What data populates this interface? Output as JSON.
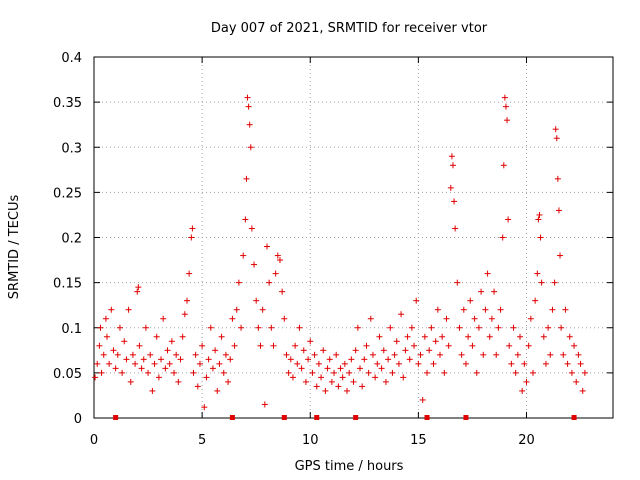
{
  "chart_data": {
    "type": "scatter",
    "title": "Day 007 of 2021, SRMTID for receiver vtor",
    "xlabel": "GPS time / hours",
    "ylabel": "SRMTID / TECUs",
    "xlim": [
      0,
      24
    ],
    "ylim": [
      0,
      0.4
    ],
    "xticks": [
      0,
      5,
      10,
      15,
      20
    ],
    "yticks": [
      0,
      0.05,
      0.1,
      0.15,
      0.2,
      0.25,
      0.3,
      0.35,
      0.4
    ],
    "grid": true,
    "marker": "plus",
    "color": "#e00000",
    "series": [
      {
        "name": "SRMTID",
        "points": [
          [
            0.05,
            0.045
          ],
          [
            0.15,
            0.06
          ],
          [
            0.25,
            0.08
          ],
          [
            0.3,
            0.1
          ],
          [
            0.35,
            0.05
          ],
          [
            0.45,
            0.07
          ],
          [
            0.55,
            0.11
          ],
          [
            0.6,
            0.09
          ],
          [
            0.7,
            0.06
          ],
          [
            0.8,
            0.12
          ],
          [
            0.9,
            0.075
          ],
          [
            1.0,
            0.055
          ],
          [
            1.1,
            0.07
          ],
          [
            1.2,
            0.1
          ],
          [
            1.3,
            0.05
          ],
          [
            1.4,
            0.085
          ],
          [
            1.5,
            0.065
          ],
          [
            1.6,
            0.12
          ],
          [
            1.7,
            0.04
          ],
          [
            1.8,
            0.07
          ],
          [
            1.9,
            0.06
          ],
          [
            2.0,
            0.14
          ],
          [
            2.05,
            0.145
          ],
          [
            2.1,
            0.08
          ],
          [
            2.2,
            0.055
          ],
          [
            2.3,
            0.065
          ],
          [
            2.4,
            0.1
          ],
          [
            2.5,
            0.05
          ],
          [
            2.6,
            0.07
          ],
          [
            2.7,
            0.03
          ],
          [
            2.8,
            0.06
          ],
          [
            2.9,
            0.09
          ],
          [
            3.0,
            0.045
          ],
          [
            3.1,
            0.065
          ],
          [
            3.2,
            0.11
          ],
          [
            3.3,
            0.055
          ],
          [
            3.4,
            0.075
          ],
          [
            3.5,
            0.06
          ],
          [
            3.6,
            0.085
          ],
          [
            3.7,
            0.05
          ],
          [
            3.8,
            0.07
          ],
          [
            3.9,
            0.04
          ],
          [
            4.0,
            0.065
          ],
          [
            4.1,
            0.09
          ],
          [
            4.2,
            0.115
          ],
          [
            4.3,
            0.13
          ],
          [
            4.4,
            0.16
          ],
          [
            4.5,
            0.2
          ],
          [
            4.55,
            0.21
          ],
          [
            4.6,
            0.05
          ],
          [
            4.7,
            0.07
          ],
          [
            4.8,
            0.035
          ],
          [
            4.9,
            0.06
          ],
          [
            5.0,
            0.08
          ],
          [
            5.1,
            0.012
          ],
          [
            5.2,
            0.045
          ],
          [
            5.3,
            0.065
          ],
          [
            5.4,
            0.1
          ],
          [
            5.5,
            0.055
          ],
          [
            5.6,
            0.075
          ],
          [
            5.7,
            0.03
          ],
          [
            5.8,
            0.06
          ],
          [
            5.9,
            0.09
          ],
          [
            6.0,
            0.05
          ],
          [
            6.1,
            0.07
          ],
          [
            6.2,
            0.04
          ],
          [
            6.3,
            0.065
          ],
          [
            6.4,
            0.11
          ],
          [
            6.5,
            0.08
          ],
          [
            6.6,
            0.12
          ],
          [
            6.7,
            0.15
          ],
          [
            6.8,
            0.1
          ],
          [
            6.9,
            0.18
          ],
          [
            7.0,
            0.22
          ],
          [
            7.05,
            0.265
          ],
          [
            7.1,
            0.355
          ],
          [
            7.15,
            0.345
          ],
          [
            7.2,
            0.325
          ],
          [
            7.25,
            0.3
          ],
          [
            7.3,
            0.21
          ],
          [
            7.4,
            0.17
          ],
          [
            7.5,
            0.13
          ],
          [
            7.6,
            0.1
          ],
          [
            7.7,
            0.08
          ],
          [
            7.8,
            0.12
          ],
          [
            7.9,
            0.015
          ],
          [
            8.0,
            0.19
          ],
          [
            8.1,
            0.15
          ],
          [
            8.2,
            0.1
          ],
          [
            8.3,
            0.08
          ],
          [
            8.4,
            0.16
          ],
          [
            8.5,
            0.18
          ],
          [
            8.6,
            0.175
          ],
          [
            8.7,
            0.14
          ],
          [
            8.8,
            0.11
          ],
          [
            8.9,
            0.07
          ],
          [
            9.0,
            0.05
          ],
          [
            9.1,
            0.065
          ],
          [
            9.2,
            0.045
          ],
          [
            9.3,
            0.08
          ],
          [
            9.4,
            0.06
          ],
          [
            9.5,
            0.1
          ],
          [
            9.6,
            0.055
          ],
          [
            9.7,
            0.075
          ],
          [
            9.8,
            0.04
          ],
          [
            9.9,
            0.065
          ],
          [
            10.0,
            0.085
          ],
          [
            10.1,
            0.05
          ],
          [
            10.2,
            0.07
          ],
          [
            10.3,
            0.035
          ],
          [
            10.4,
            0.06
          ],
          [
            10.5,
            0.045
          ],
          [
            10.6,
            0.075
          ],
          [
            10.7,
            0.03
          ],
          [
            10.8,
            0.055
          ],
          [
            10.9,
            0.065
          ],
          [
            11.0,
            0.04
          ],
          [
            11.1,
            0.05
          ],
          [
            11.2,
            0.07
          ],
          [
            11.3,
            0.035
          ],
          [
            11.4,
            0.055
          ],
          [
            11.5,
            0.045
          ],
          [
            11.6,
            0.06
          ],
          [
            11.7,
            0.03
          ],
          [
            11.8,
            0.05
          ],
          [
            11.9,
            0.065
          ],
          [
            12.0,
            0.04
          ],
          [
            12.1,
            0.075
          ],
          [
            12.2,
            0.1
          ],
          [
            12.3,
            0.055
          ],
          [
            12.4,
            0.035
          ],
          [
            12.5,
            0.065
          ],
          [
            12.6,
            0.08
          ],
          [
            12.7,
            0.05
          ],
          [
            12.8,
            0.11
          ],
          [
            12.9,
            0.07
          ],
          [
            13.0,
            0.045
          ],
          [
            13.1,
            0.06
          ],
          [
            13.2,
            0.09
          ],
          [
            13.3,
            0.055
          ],
          [
            13.4,
            0.075
          ],
          [
            13.5,
            0.04
          ],
          [
            13.6,
            0.065
          ],
          [
            13.7,
            0.1
          ],
          [
            13.8,
            0.05
          ],
          [
            13.9,
            0.07
          ],
          [
            14.0,
            0.085
          ],
          [
            14.1,
            0.06
          ],
          [
            14.2,
            0.115
          ],
          [
            14.3,
            0.045
          ],
          [
            14.4,
            0.075
          ],
          [
            14.5,
            0.09
          ],
          [
            14.6,
            0.065
          ],
          [
            14.7,
            0.1
          ],
          [
            14.8,
            0.08
          ],
          [
            14.9,
            0.13
          ],
          [
            15.0,
            0.06
          ],
          [
            15.1,
            0.07
          ],
          [
            15.2,
            0.02
          ],
          [
            15.3,
            0.09
          ],
          [
            15.4,
            0.05
          ],
          [
            15.5,
            0.075
          ],
          [
            15.6,
            0.1
          ],
          [
            15.7,
            0.06
          ],
          [
            15.8,
            0.085
          ],
          [
            15.9,
            0.12
          ],
          [
            16.0,
            0.07
          ],
          [
            16.1,
            0.09
          ],
          [
            16.2,
            0.05
          ],
          [
            16.3,
            0.11
          ],
          [
            16.4,
            0.08
          ],
          [
            16.5,
            0.255
          ],
          [
            16.55,
            0.29
          ],
          [
            16.6,
            0.28
          ],
          [
            16.65,
            0.24
          ],
          [
            16.7,
            0.21
          ],
          [
            16.8,
            0.15
          ],
          [
            16.9,
            0.1
          ],
          [
            17.0,
            0.07
          ],
          [
            17.1,
            0.12
          ],
          [
            17.2,
            0.06
          ],
          [
            17.3,
            0.09
          ],
          [
            17.4,
            0.13
          ],
          [
            17.5,
            0.08
          ],
          [
            17.6,
            0.11
          ],
          [
            17.7,
            0.05
          ],
          [
            17.8,
            0.1
          ],
          [
            17.9,
            0.14
          ],
          [
            18.0,
            0.07
          ],
          [
            18.1,
            0.12
          ],
          [
            18.2,
            0.16
          ],
          [
            18.3,
            0.09
          ],
          [
            18.4,
            0.11
          ],
          [
            18.5,
            0.14
          ],
          [
            18.6,
            0.07
          ],
          [
            18.7,
            0.1
          ],
          [
            18.8,
            0.12
          ],
          [
            18.9,
            0.2
          ],
          [
            18.95,
            0.28
          ],
          [
            19.0,
            0.355
          ],
          [
            19.05,
            0.345
          ],
          [
            19.1,
            0.33
          ],
          [
            19.15,
            0.22
          ],
          [
            19.2,
            0.08
          ],
          [
            19.3,
            0.06
          ],
          [
            19.4,
            0.1
          ],
          [
            19.5,
            0.05
          ],
          [
            19.6,
            0.07
          ],
          [
            19.7,
            0.09
          ],
          [
            19.8,
            0.03
          ],
          [
            19.9,
            0.06
          ],
          [
            20.0,
            0.04
          ],
          [
            20.1,
            0.08
          ],
          [
            20.2,
            0.11
          ],
          [
            20.3,
            0.05
          ],
          [
            20.4,
            0.13
          ],
          [
            20.5,
            0.16
          ],
          [
            20.55,
            0.22
          ],
          [
            20.6,
            0.225
          ],
          [
            20.65,
            0.2
          ],
          [
            20.7,
            0.15
          ],
          [
            20.8,
            0.09
          ],
          [
            20.9,
            0.06
          ],
          [
            21.0,
            0.1
          ],
          [
            21.1,
            0.07
          ],
          [
            21.2,
            0.12
          ],
          [
            21.3,
            0.15
          ],
          [
            21.35,
            0.32
          ],
          [
            21.4,
            0.31
          ],
          [
            21.45,
            0.265
          ],
          [
            21.5,
            0.23
          ],
          [
            21.55,
            0.18
          ],
          [
            21.6,
            0.1
          ],
          [
            21.7,
            0.07
          ],
          [
            21.8,
            0.12
          ],
          [
            21.9,
            0.06
          ],
          [
            22.0,
            0.09
          ],
          [
            22.1,
            0.05
          ],
          [
            22.2,
            0.08
          ],
          [
            22.3,
            0.04
          ],
          [
            22.4,
            0.07
          ],
          [
            22.5,
            0.06
          ],
          [
            22.6,
            0.03
          ],
          [
            22.7,
            0.05
          ]
        ]
      }
    ],
    "axis_markers_x": [
      1.0,
      6.4,
      8.8,
      10.3,
      12.1,
      15.4,
      17.2,
      22.2
    ]
  }
}
